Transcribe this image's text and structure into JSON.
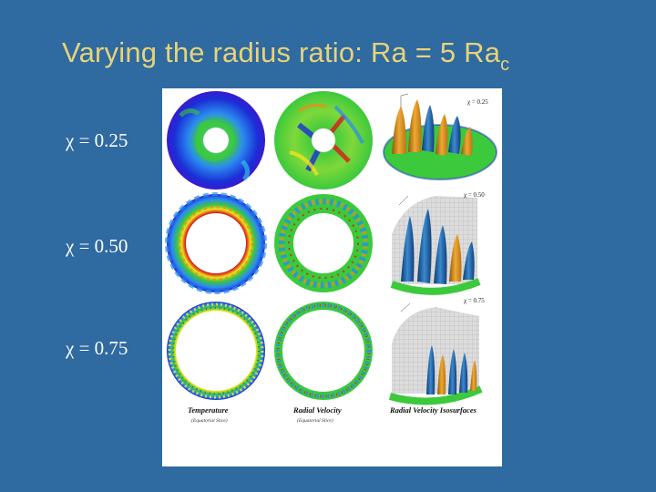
{
  "slide": {
    "title_main": "Varying the radius ratio: Ra = 5 Ra",
    "title_sub": "c",
    "rows": [
      {
        "label": "χ = 0.25"
      },
      {
        "label": "χ = 0.50"
      },
      {
        "label": "χ = 0.75"
      }
    ]
  },
  "figure": {
    "chi_tags": [
      "χ = 0.25",
      "χ = 0.50",
      "χ = 0.75"
    ],
    "captions": [
      {
        "title": "Temperature",
        "subtitle": "(Equatorial Slice)"
      },
      {
        "title": "Radial Velocity",
        "subtitle": "(Equatorial Slice)"
      },
      {
        "title": "Radial Velocity Isosurfaces",
        "subtitle": ""
      }
    ],
    "colors": {
      "background": "#2f6aa0",
      "title": "#e7d37a",
      "colormap": [
        "#1a2fd6",
        "#2b8cf0",
        "#33d6e8",
        "#3cc93c",
        "#f2e21a",
        "#f08a1a",
        "#d81a1a"
      ]
    }
  }
}
